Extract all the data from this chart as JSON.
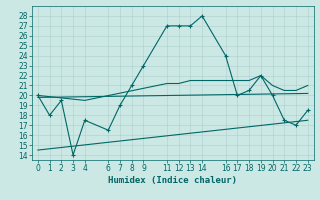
{
  "xlabel": "Humidex (Indice chaleur)",
  "background_color": "#cce8e4",
  "grid_color": "#aacfcb",
  "line_color": "#006666",
  "x_ticks": [
    0,
    1,
    2,
    3,
    4,
    6,
    7,
    8,
    9,
    11,
    12,
    13,
    14,
    16,
    17,
    18,
    19,
    20,
    21,
    22,
    23
  ],
  "ylim": [
    13.5,
    29
  ],
  "xlim": [
    -0.5,
    23.5
  ],
  "y_ticks": [
    14,
    15,
    16,
    17,
    18,
    19,
    20,
    21,
    22,
    23,
    24,
    25,
    26,
    27,
    28
  ],
  "line1_x": [
    0,
    1,
    2,
    3,
    4,
    6,
    7,
    8,
    9,
    11,
    12,
    13,
    14,
    16,
    17,
    18,
    19,
    20,
    21,
    22,
    23
  ],
  "line1_y": [
    20,
    18,
    19.5,
    14,
    17.5,
    16.5,
    19,
    21,
    23,
    27,
    27,
    27,
    28,
    24,
    20,
    20.5,
    22,
    20,
    17.5,
    17,
    18.5
  ],
  "line2_x": [
    0,
    4,
    11,
    12,
    13,
    14,
    16,
    17,
    18,
    19,
    20,
    21,
    22,
    23
  ],
  "line2_y": [
    20,
    19.5,
    21.2,
    21.2,
    21.5,
    21.5,
    21.5,
    21.5,
    21.5,
    22,
    21,
    20.5,
    20.5,
    21
  ],
  "line3_x": [
    0,
    23
  ],
  "line3_y": [
    19.8,
    20.2
  ],
  "line4_x": [
    0,
    23
  ],
  "line4_y": [
    14.5,
    17.5
  ],
  "font_size": 6.5,
  "tick_fontsize": 5.5
}
